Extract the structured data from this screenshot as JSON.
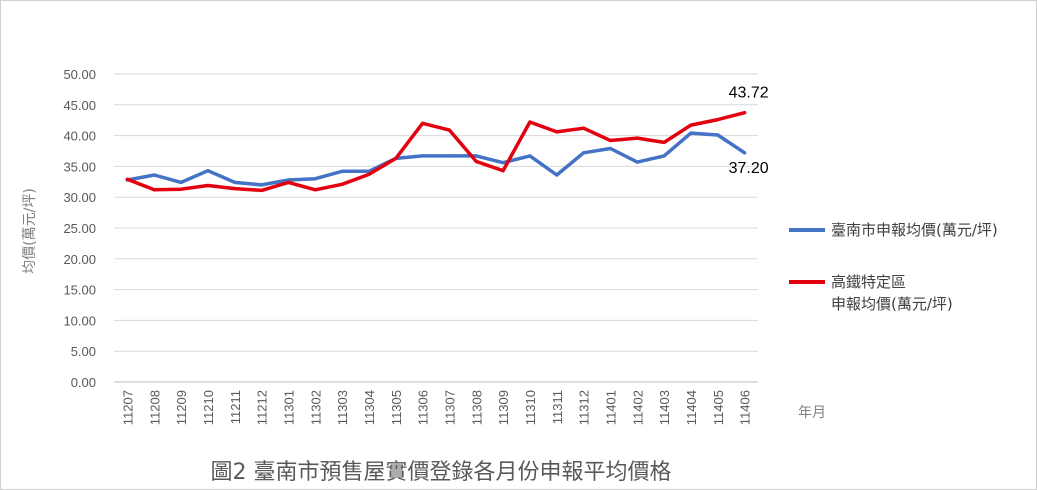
{
  "chart_data": {
    "type": "line",
    "title": "",
    "caption": "圖2  臺南市預售屋實價登錄各月份申報平均價格",
    "xlabel": "年月",
    "ylabel": "均價(萬元/坪)",
    "ylim": [
      0,
      50
    ],
    "yticks": [
      "0.00",
      "5.00",
      "10.00",
      "15.00",
      "20.00",
      "25.00",
      "30.00",
      "35.00",
      "40.00",
      "45.00",
      "50.00"
    ],
    "grid": "horizontal",
    "legend_position": "right",
    "categories": [
      "11207",
      "11208",
      "11209",
      "11210",
      "11211",
      "11212",
      "11301",
      "11302",
      "11303",
      "11304",
      "11305",
      "11306",
      "11307",
      "11308",
      "11309",
      "11310",
      "11311",
      "11312",
      "11401",
      "11402",
      "11403",
      "11404",
      "11405",
      "11406"
    ],
    "series": [
      {
        "name": "臺南市申報均價(萬元/坪)",
        "legend_lines": [
          "臺南市申報均價(萬元/坪)"
        ],
        "color": "#4472C4",
        "values": [
          32.8,
          33.6,
          32.4,
          34.3,
          32.4,
          32.0,
          32.8,
          33.0,
          34.2,
          34.2,
          36.3,
          36.7,
          36.7,
          36.7,
          35.6,
          36.7,
          33.6,
          37.2,
          37.9,
          35.7,
          36.7,
          40.4,
          40.1,
          37.2
        ],
        "end_label": "37.20"
      },
      {
        "name": "高鐵特定區申報均價(萬元/坪)",
        "legend_lines": [
          "高鐵特定區",
          "申報均價(萬元/坪)"
        ],
        "color": "#E3000F",
        "values": [
          32.9,
          31.2,
          31.3,
          31.9,
          31.4,
          31.1,
          32.4,
          31.2,
          32.1,
          33.7,
          36.3,
          42.0,
          40.9,
          35.8,
          34.3,
          42.2,
          40.6,
          41.2,
          39.2,
          39.6,
          38.9,
          41.7,
          42.6,
          43.72
        ],
        "end_label": "43.72"
      }
    ]
  }
}
